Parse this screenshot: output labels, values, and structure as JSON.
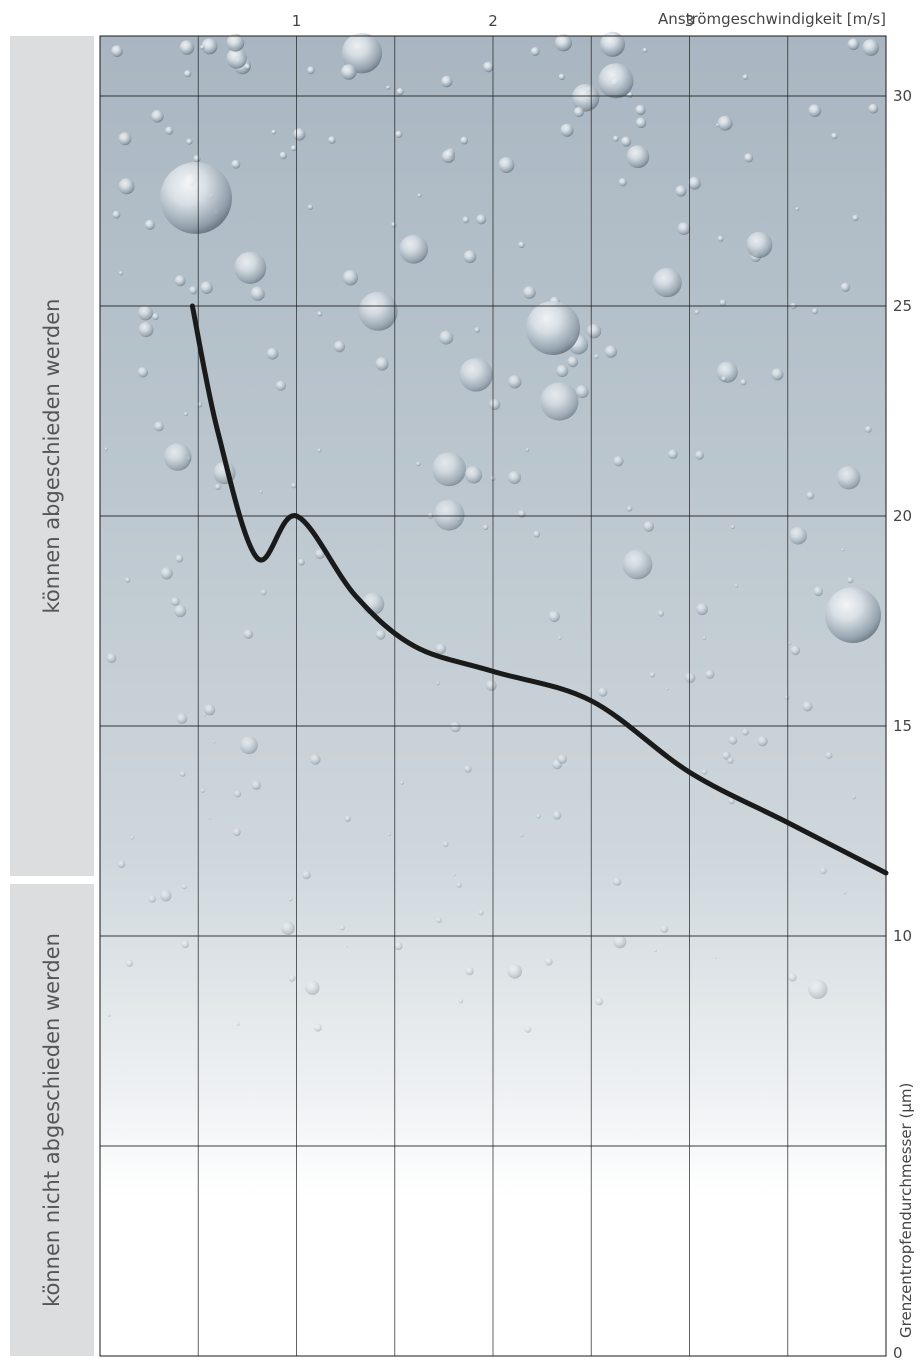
{
  "bands": {
    "upper_label": "können abgeschieden werden",
    "lower_label": "können nicht abgeschieden werden"
  },
  "chart_data": {
    "type": "line",
    "xlabel": "Anströmgeschwindigkeit [m/s]",
    "ylabel": "Grenzentropfendurchmesser (µm)",
    "xlim": [
      0,
      4
    ],
    "ylim": [
      0,
      32
    ],
    "x_tick_labels": [
      "1",
      "2",
      "3"
    ],
    "x_ticks": [
      1,
      2,
      3
    ],
    "y_tick_labels": [
      "0",
      "10",
      "15",
      "20",
      "25",
      "30"
    ],
    "y_ticks": [
      0,
      10,
      15,
      20,
      25,
      30
    ],
    "grid": true,
    "series": [
      {
        "color": "#1a1a1a",
        "x": [
          0.47,
          0.6,
          0.8,
          1.0,
          1.3,
          1.6,
          2.0,
          2.5,
          3.0,
          3.5,
          4.0
        ],
        "y": [
          25.0,
          22.0,
          19.0,
          20.0,
          18.1,
          16.9,
          16.3,
          15.6,
          13.9,
          12.7,
          11.5
        ]
      }
    ]
  },
  "colors": {
    "grid": "#1a1a1a",
    "curve": "#1a1a1a",
    "band": "#dcdddf"
  }
}
